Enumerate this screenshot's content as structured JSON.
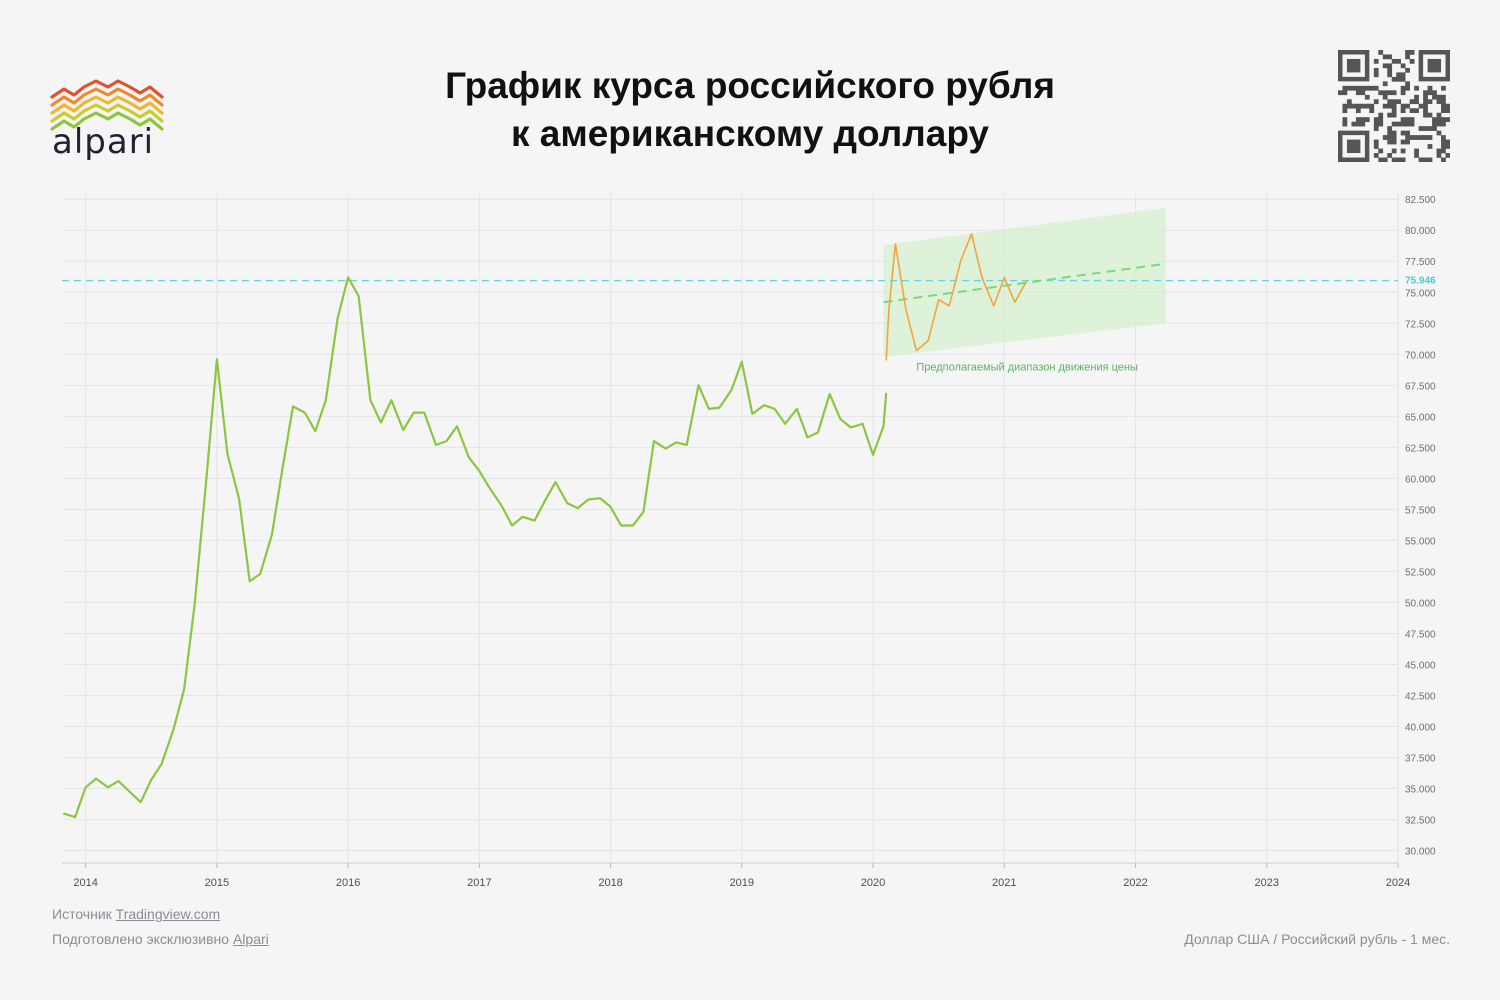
{
  "header": {
    "logo_text": "alpari",
    "title_line1": "График курса российского рубля",
    "title_line2": "к американскому доллару"
  },
  "footer": {
    "source_prefix": "Источник ",
    "source_link": "Tradingview.com",
    "prepared_prefix": "Подготовлено эксклюзивно ",
    "prepared_link": "Alpari",
    "instrument": "Доллар США /  Российский рубль - 1 мес."
  },
  "colors": {
    "history_line": "#8cc63f",
    "recent_line": "#f4a340",
    "forecast_band": "#d6efcf",
    "forecast_line": "#7ed87a",
    "current_price_line": "#67d3e0",
    "current_price_label": "#4cc7d6",
    "annotation": "#5bb55b",
    "logo_colors": [
      "#e0522b",
      "#ef8a2a",
      "#f2b52e",
      "#c8cc2c",
      "#8cc63f"
    ]
  },
  "chart_data": {
    "type": "line",
    "title": "",
    "xlabel": "",
    "ylabel": "",
    "x_ticks": [
      "2014",
      "2015",
      "2016",
      "2017",
      "2018",
      "2019",
      "2020",
      "2021",
      "2022",
      "2023",
      "2024"
    ],
    "y_ticks": [
      "30.000",
      "32.500",
      "35.000",
      "37.500",
      "40.000",
      "42.500",
      "45.000",
      "47.500",
      "50.000",
      "52.500",
      "55.000",
      "57.500",
      "60.000",
      "62.500",
      "65.000",
      "67.500",
      "70.000",
      "72.500",
      "75.000",
      "77.500",
      "80.000",
      "82.500"
    ],
    "xlim": [
      2013.82,
      2024.0
    ],
    "ylim": [
      29.0,
      83.0
    ],
    "grid": true,
    "current_price": 75.946,
    "current_price_label": "75.946",
    "series": [
      {
        "values_x": [
          2013.83,
          2013.92,
          2014.0,
          2014.08,
          2014.17,
          2014.25,
          2014.33,
          2014.42,
          2014.5,
          2014.58,
          2014.67,
          2014.75,
          2014.83,
          2014.92,
          2015.0,
          2015.08,
          2015.17,
          2015.25,
          2015.33,
          2015.42,
          2015.5,
          2015.58,
          2015.67,
          2015.75,
          2015.83,
          2015.92,
          2016.0,
          2016.08,
          2016.17,
          2016.25,
          2016.33,
          2016.42,
          2016.5,
          2016.58,
          2016.67,
          2016.75,
          2016.83,
          2016.92,
          2017.0,
          2017.08,
          2017.17,
          2017.25,
          2017.33,
          2017.42,
          2017.5,
          2017.58,
          2017.67,
          2017.75,
          2017.83,
          2017.92,
          2018.0,
          2018.08,
          2018.17,
          2018.25,
          2018.33,
          2018.42,
          2018.5,
          2018.58,
          2018.67,
          2018.75,
          2018.83,
          2018.92,
          2019.0,
          2019.08,
          2019.17,
          2019.25,
          2019.33,
          2019.42,
          2019.5,
          2019.58,
          2019.67,
          2019.75,
          2019.83,
          2019.92,
          2020.0,
          2020.08,
          2020.1
        ],
        "values_y": [
          33.0,
          32.7,
          35.1,
          35.8,
          35.1,
          35.6,
          34.8,
          33.9,
          35.7,
          37.0,
          39.8,
          43.0,
          49.8,
          60.0,
          69.6,
          62.0,
          58.3,
          51.7,
          52.3,
          55.5,
          60.8,
          65.8,
          65.3,
          63.8,
          66.3,
          72.9,
          76.2,
          74.7,
          66.3,
          64.5,
          66.3,
          63.9,
          65.3,
          65.3,
          62.7,
          63.0,
          64.2,
          61.7,
          60.6,
          59.2,
          57.8,
          56.2,
          56.9,
          56.6,
          58.2,
          59.7,
          58.0,
          57.6,
          58.3,
          58.4,
          57.7,
          56.2,
          56.2,
          57.3,
          63.0,
          62.4,
          62.9,
          62.7,
          67.5,
          65.6,
          65.7,
          67.1,
          69.4,
          65.2,
          65.9,
          65.6,
          64.4,
          65.6,
          63.3,
          63.7,
          66.8,
          64.8,
          64.1,
          64.4,
          61.9,
          64.2,
          66.9
        ],
        "color": "#8cc63f"
      },
      {
        "values_x": [
          2020.1,
          2020.12,
          2020.17,
          2020.25,
          2020.33,
          2020.42,
          2020.5,
          2020.58,
          2020.67,
          2020.75,
          2020.83,
          2020.92,
          2021.0,
          2021.08,
          2021.17
        ],
        "values_y": [
          69.5,
          73.5,
          78.9,
          73.6,
          70.3,
          71.1,
          74.4,
          73.9,
          77.6,
          79.7,
          76.2,
          73.9,
          76.2,
          74.2,
          75.9
        ],
        "color": "#f4a340"
      }
    ],
    "forecast": {
      "label": "Предполагаемый диапазон движения цены",
      "band_upper": [
        [
          2020.08,
          78.8
        ],
        [
          2022.23,
          81.8
        ]
      ],
      "band_lower": [
        [
          2020.08,
          69.8
        ],
        [
          2022.23,
          72.5
        ]
      ],
      "center_line": [
        [
          2020.08,
          74.2
        ],
        [
          2022.23,
          77.3
        ]
      ]
    }
  }
}
